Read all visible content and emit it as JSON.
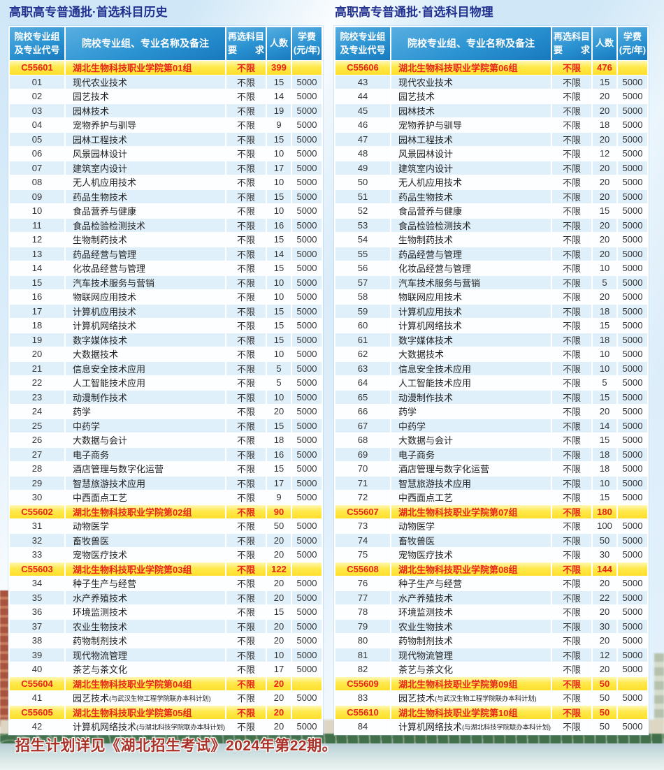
{
  "colors": {
    "title_navy": "#22318f",
    "header_blue": "#2b93d2",
    "group_yellow": "#ffe94a",
    "group_red": "#e8251d",
    "row_alt_blue": "#e0f0fb",
    "footer_red": "#a93128"
  },
  "headers": {
    "code": "院校专业组\n及专业代号",
    "name": "院校专业组、专业名称及备注",
    "req": "再选科目\n要　　求",
    "num": "人数",
    "fee": "学费\n(元/年)"
  },
  "footer": {
    "note": "招生计划详见《湖北招生考试》2024年第22期。"
  },
  "tables": [
    {
      "title": "高职高专普通批·首选科目历史",
      "rows": [
        {
          "group": true,
          "code": "C55601",
          "name": "湖北生物科技职业学院第01组",
          "req": "不限",
          "num": "399",
          "fee": ""
        },
        {
          "code": "01",
          "name": "现代农业技术",
          "req": "不限",
          "num": "15",
          "fee": "5000"
        },
        {
          "code": "02",
          "name": "园艺技术",
          "req": "不限",
          "num": "14",
          "fee": "5000"
        },
        {
          "code": "03",
          "name": "园林技术",
          "req": "不限",
          "num": "19",
          "fee": "5000"
        },
        {
          "code": "04",
          "name": "宠物养护与驯导",
          "req": "不限",
          "num": "9",
          "fee": "5000"
        },
        {
          "code": "05",
          "name": "园林工程技术",
          "req": "不限",
          "num": "15",
          "fee": "5000"
        },
        {
          "code": "06",
          "name": "风景园林设计",
          "req": "不限",
          "num": "10",
          "fee": "5000"
        },
        {
          "code": "07",
          "name": "建筑室内设计",
          "req": "不限",
          "num": "17",
          "fee": "5000"
        },
        {
          "code": "08",
          "name": "无人机应用技术",
          "req": "不限",
          "num": "10",
          "fee": "5000"
        },
        {
          "code": "09",
          "name": "药品生物技术",
          "req": "不限",
          "num": "15",
          "fee": "5000"
        },
        {
          "code": "10",
          "name": "食品营养与健康",
          "req": "不限",
          "num": "10",
          "fee": "5000"
        },
        {
          "code": "11",
          "name": "食品检验检测技术",
          "req": "不限",
          "num": "16",
          "fee": "5000"
        },
        {
          "code": "12",
          "name": "生物制药技术",
          "req": "不限",
          "num": "15",
          "fee": "5000"
        },
        {
          "code": "13",
          "name": "药品经营与管理",
          "req": "不限",
          "num": "14",
          "fee": "5000"
        },
        {
          "code": "14",
          "name": "化妆品经营与管理",
          "req": "不限",
          "num": "15",
          "fee": "5000"
        },
        {
          "code": "15",
          "name": "汽车技术服务与营销",
          "req": "不限",
          "num": "10",
          "fee": "5000"
        },
        {
          "code": "16",
          "name": "物联网应用技术",
          "req": "不限",
          "num": "10",
          "fee": "5000"
        },
        {
          "code": "17",
          "name": "计算机应用技术",
          "req": "不限",
          "num": "15",
          "fee": "5000"
        },
        {
          "code": "18",
          "name": "计算机网络技术",
          "req": "不限",
          "num": "15",
          "fee": "5000"
        },
        {
          "code": "19",
          "name": "数字媒体技术",
          "req": "不限",
          "num": "15",
          "fee": "5000"
        },
        {
          "code": "20",
          "name": "大数据技术",
          "req": "不限",
          "num": "10",
          "fee": "5000"
        },
        {
          "code": "21",
          "name": "信息安全技术应用",
          "req": "不限",
          "num": "5",
          "fee": "5000"
        },
        {
          "code": "22",
          "name": "人工智能技术应用",
          "req": "不限",
          "num": "5",
          "fee": "5000"
        },
        {
          "code": "23",
          "name": "动漫制作技术",
          "req": "不限",
          "num": "10",
          "fee": "5000"
        },
        {
          "code": "24",
          "name": "药学",
          "req": "不限",
          "num": "20",
          "fee": "5000"
        },
        {
          "code": "25",
          "name": "中药学",
          "req": "不限",
          "num": "15",
          "fee": "5000"
        },
        {
          "code": "26",
          "name": "大数据与会计",
          "req": "不限",
          "num": "18",
          "fee": "5000"
        },
        {
          "code": "27",
          "name": "电子商务",
          "req": "不限",
          "num": "16",
          "fee": "5000"
        },
        {
          "code": "28",
          "name": "酒店管理与数字化运营",
          "req": "不限",
          "num": "15",
          "fee": "5000"
        },
        {
          "code": "29",
          "name": "智慧旅游技术应用",
          "req": "不限",
          "num": "17",
          "fee": "5000"
        },
        {
          "code": "30",
          "name": "中西面点工艺",
          "req": "不限",
          "num": "9",
          "fee": "5000"
        },
        {
          "group": true,
          "code": "C55602",
          "name": "湖北生物科技职业学院第02组",
          "req": "不限",
          "num": "90",
          "fee": ""
        },
        {
          "code": "31",
          "name": "动物医学",
          "req": "不限",
          "num": "50",
          "fee": "5000"
        },
        {
          "code": "32",
          "name": "畜牧兽医",
          "req": "不限",
          "num": "20",
          "fee": "5000"
        },
        {
          "code": "33",
          "name": "宠物医疗技术",
          "req": "不限",
          "num": "20",
          "fee": "5000"
        },
        {
          "group": true,
          "code": "C55603",
          "name": "湖北生物科技职业学院第03组",
          "req": "不限",
          "num": "122",
          "fee": ""
        },
        {
          "code": "34",
          "name": "种子生产与经营",
          "req": "不限",
          "num": "20",
          "fee": "5000"
        },
        {
          "code": "35",
          "name": "水产养殖技术",
          "req": "不限",
          "num": "20",
          "fee": "5000"
        },
        {
          "code": "36",
          "name": "环境监测技术",
          "req": "不限",
          "num": "15",
          "fee": "5000"
        },
        {
          "code": "37",
          "name": "农业生物技术",
          "req": "不限",
          "num": "20",
          "fee": "5000"
        },
        {
          "code": "38",
          "name": "药物制剂技术",
          "req": "不限",
          "num": "20",
          "fee": "5000"
        },
        {
          "code": "39",
          "name": "现代物流管理",
          "req": "不限",
          "num": "10",
          "fee": "5000"
        },
        {
          "code": "40",
          "name": "茶艺与茶文化",
          "req": "不限",
          "num": "17",
          "fee": "5000"
        },
        {
          "group": true,
          "code": "C55604",
          "name": "湖北生物科技职业学院第04组",
          "req": "不限",
          "num": "20",
          "fee": ""
        },
        {
          "code": "41",
          "name": "园艺技术",
          "note": "(与武汉生物工程学院联办本科计划)",
          "req": "不限",
          "num": "20",
          "fee": "5000"
        },
        {
          "group": true,
          "code": "C55605",
          "name": "湖北生物科技职业学院第05组",
          "req": "不限",
          "num": "20",
          "fee": ""
        },
        {
          "code": "42",
          "name": "计算机网络技术",
          "note": "(与湖北科技学院联办本科计划)",
          "req": "不限",
          "num": "20",
          "fee": "5000"
        }
      ]
    },
    {
      "title": "高职高专普通批·首选科目物理",
      "rows": [
        {
          "group": true,
          "code": "C55606",
          "name": "湖北生物科技职业学院第06组",
          "req": "不限",
          "num": "476",
          "fee": ""
        },
        {
          "code": "43",
          "name": "现代农业技术",
          "req": "不限",
          "num": "15",
          "fee": "5000"
        },
        {
          "code": "44",
          "name": "园艺技术",
          "req": "不限",
          "num": "20",
          "fee": "5000"
        },
        {
          "code": "45",
          "name": "园林技术",
          "req": "不限",
          "num": "20",
          "fee": "5000"
        },
        {
          "code": "46",
          "name": "宠物养护与驯导",
          "req": "不限",
          "num": "18",
          "fee": "5000"
        },
        {
          "code": "47",
          "name": "园林工程技术",
          "req": "不限",
          "num": "20",
          "fee": "5000"
        },
        {
          "code": "48",
          "name": "风景园林设计",
          "req": "不限",
          "num": "12",
          "fee": "5000"
        },
        {
          "code": "49",
          "name": "建筑室内设计",
          "req": "不限",
          "num": "20",
          "fee": "5000"
        },
        {
          "code": "50",
          "name": "无人机应用技术",
          "req": "不限",
          "num": "20",
          "fee": "5000"
        },
        {
          "code": "51",
          "name": "药品生物技术",
          "req": "不限",
          "num": "20",
          "fee": "5000"
        },
        {
          "code": "52",
          "name": "食品营养与健康",
          "req": "不限",
          "num": "15",
          "fee": "5000"
        },
        {
          "code": "53",
          "name": "食品检验检测技术",
          "req": "不限",
          "num": "20",
          "fee": "5000"
        },
        {
          "code": "54",
          "name": "生物制药技术",
          "req": "不限",
          "num": "20",
          "fee": "5000"
        },
        {
          "code": "55",
          "name": "药品经营与管理",
          "req": "不限",
          "num": "20",
          "fee": "5000"
        },
        {
          "code": "56",
          "name": "化妆品经营与管理",
          "req": "不限",
          "num": "10",
          "fee": "5000"
        },
        {
          "code": "57",
          "name": "汽车技术服务与营销",
          "req": "不限",
          "num": "5",
          "fee": "5000"
        },
        {
          "code": "58",
          "name": "物联网应用技术",
          "req": "不限",
          "num": "20",
          "fee": "5000"
        },
        {
          "code": "59",
          "name": "计算机应用技术",
          "req": "不限",
          "num": "18",
          "fee": "5000"
        },
        {
          "code": "60",
          "name": "计算机网络技术",
          "req": "不限",
          "num": "15",
          "fee": "5000"
        },
        {
          "code": "61",
          "name": "数字媒体技术",
          "req": "不限",
          "num": "18",
          "fee": "5000"
        },
        {
          "code": "62",
          "name": "大数据技术",
          "req": "不限",
          "num": "10",
          "fee": "5000"
        },
        {
          "code": "63",
          "name": "信息安全技术应用",
          "req": "不限",
          "num": "10",
          "fee": "5000"
        },
        {
          "code": "64",
          "name": "人工智能技术应用",
          "req": "不限",
          "num": "5",
          "fee": "5000"
        },
        {
          "code": "65",
          "name": "动漫制作技术",
          "req": "不限",
          "num": "15",
          "fee": "5000"
        },
        {
          "code": "66",
          "name": "药学",
          "req": "不限",
          "num": "20",
          "fee": "5000"
        },
        {
          "code": "67",
          "name": "中药学",
          "req": "不限",
          "num": "14",
          "fee": "5000"
        },
        {
          "code": "68",
          "name": "大数据与会计",
          "req": "不限",
          "num": "15",
          "fee": "5000"
        },
        {
          "code": "69",
          "name": "电子商务",
          "req": "不限",
          "num": "18",
          "fee": "5000"
        },
        {
          "code": "70",
          "name": "酒店管理与数字化运营",
          "req": "不限",
          "num": "18",
          "fee": "5000"
        },
        {
          "code": "71",
          "name": "智慧旅游技术应用",
          "req": "不限",
          "num": "10",
          "fee": "5000"
        },
        {
          "code": "72",
          "name": "中西面点工艺",
          "req": "不限",
          "num": "15",
          "fee": "5000"
        },
        {
          "group": true,
          "code": "C55607",
          "name": "湖北生物科技职业学院第07组",
          "req": "不限",
          "num": "180",
          "fee": ""
        },
        {
          "code": "73",
          "name": "动物医学",
          "req": "不限",
          "num": "100",
          "fee": "5000"
        },
        {
          "code": "74",
          "name": "畜牧兽医",
          "req": "不限",
          "num": "50",
          "fee": "5000"
        },
        {
          "code": "75",
          "name": "宠物医疗技术",
          "req": "不限",
          "num": "30",
          "fee": "5000"
        },
        {
          "group": true,
          "code": "C55608",
          "name": "湖北生物科技职业学院第08组",
          "req": "不限",
          "num": "144",
          "fee": ""
        },
        {
          "code": "76",
          "name": "种子生产与经营",
          "req": "不限",
          "num": "20",
          "fee": "5000"
        },
        {
          "code": "77",
          "name": "水产养殖技术",
          "req": "不限",
          "num": "22",
          "fee": "5000"
        },
        {
          "code": "78",
          "name": "环境监测技术",
          "req": "不限",
          "num": "20",
          "fee": "5000"
        },
        {
          "code": "79",
          "name": "农业生物技术",
          "req": "不限",
          "num": "30",
          "fee": "5000"
        },
        {
          "code": "80",
          "name": "药物制剂技术",
          "req": "不限",
          "num": "20",
          "fee": "5000"
        },
        {
          "code": "81",
          "name": "现代物流管理",
          "req": "不限",
          "num": "12",
          "fee": "5000"
        },
        {
          "code": "82",
          "name": "茶艺与茶文化",
          "req": "不限",
          "num": "20",
          "fee": "5000"
        },
        {
          "group": true,
          "code": "C55609",
          "name": "湖北生物科技职业学院第09组",
          "req": "不限",
          "num": "50",
          "fee": ""
        },
        {
          "code": "83",
          "name": "园艺技术",
          "note": "(与武汉生物工程学院联办本科计划)",
          "req": "不限",
          "num": "50",
          "fee": "5000"
        },
        {
          "group": true,
          "code": "C55610",
          "name": "湖北生物科技职业学院第10组",
          "req": "不限",
          "num": "50",
          "fee": ""
        },
        {
          "code": "84",
          "name": "计算机网络技术",
          "note": "(与湖北科技学院联办本科计划)",
          "req": "不限",
          "num": "50",
          "fee": "5000"
        }
      ]
    }
  ]
}
